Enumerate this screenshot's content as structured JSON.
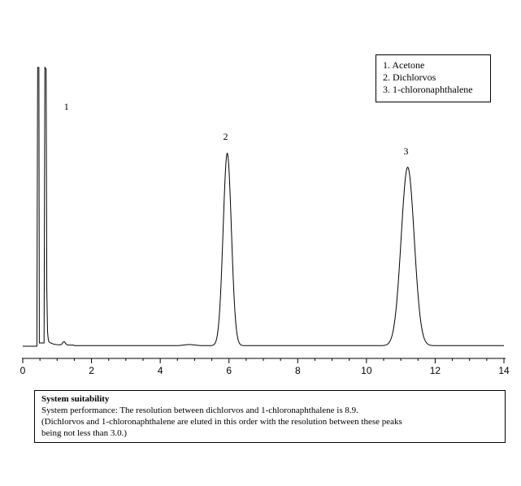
{
  "chart_data": {
    "type": "line",
    "xlim": [
      0,
      14
    ],
    "x_ticks": [
      "0",
      "2",
      "4",
      "6",
      "8",
      "10",
      "12",
      "14"
    ],
    "grid": false,
    "legend_placement": "top-right",
    "legend_entries": [
      "1. Acetone",
      "2. Dichlorvos",
      "3. 1-chloronaphthalene"
    ],
    "peaks": [
      {
        "label": "1",
        "retention_time": 0.6,
        "relative_height": 1.0,
        "offscale": true
      },
      {
        "label": "2",
        "retention_time": 5.95,
        "relative_height": 0.69
      },
      {
        "label": "3",
        "retention_time": 11.2,
        "relative_height": 0.64
      }
    ]
  },
  "system_suitability": {
    "title": "System suitability",
    "line1": "System performance: The resolution between dichlorvos and 1-chloronaphthalene is 8.9.",
    "line2": "(Dichlorvos and 1-chloronaphthalene are eluted in this order with the resolution between these peaks",
    "line3": "being not less than 3.0.)"
  }
}
